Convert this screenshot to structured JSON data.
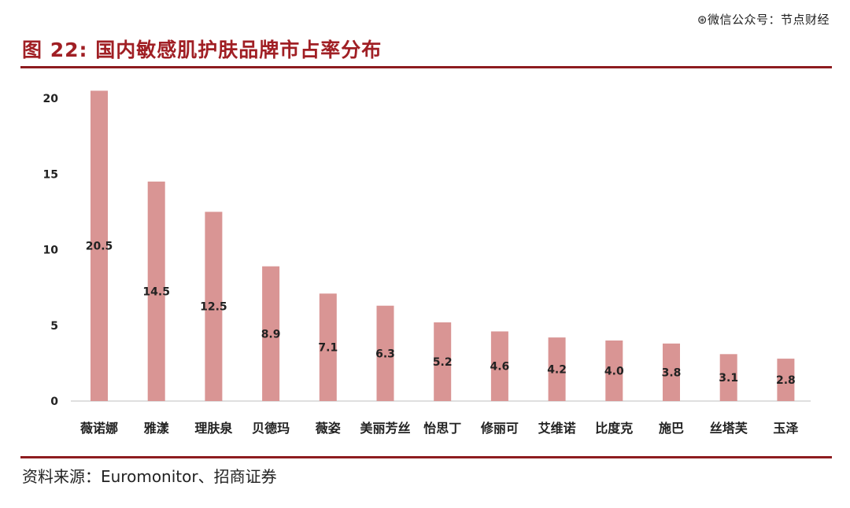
{
  "watermark": "⊛微信公众号：节点财经",
  "figure": {
    "title": "图 22: 国内敏感肌护肤品牌市占率分布",
    "source": "资料来源：Euromonitor、招商证券"
  },
  "colors": {
    "bar": "#d99594",
    "title": "#a01f24",
    "rule": "#8e1c1f",
    "axis": "#bfbfbf"
  },
  "chart_data": {
    "type": "bar",
    "categories": [
      "薇诺娜",
      "雅漾",
      "理肤泉",
      "贝德玛",
      "薇姿",
      "美丽芳丝",
      "怡思丁",
      "修丽可",
      "艾维诺",
      "比度克",
      "施巴",
      "丝塔芙",
      "玉泽"
    ],
    "values": [
      20.5,
      14.5,
      12.5,
      8.9,
      7.1,
      6.3,
      5.2,
      4.6,
      4.2,
      4.0,
      3.8,
      3.1,
      2.8
    ],
    "value_labels": [
      "20.5",
      "14.5",
      "12.5",
      "8.9",
      "7.1",
      "6.3",
      "5.2",
      "4.6",
      "4.2",
      "4.0",
      "3.8",
      "3.1",
      "2.8"
    ],
    "ylim": [
      0,
      20
    ],
    "yticks": [
      "0",
      "5",
      "10",
      "15",
      "20"
    ],
    "ytick_values": [
      0,
      5,
      10,
      15,
      20
    ],
    "grid": false,
    "legend": "none"
  }
}
